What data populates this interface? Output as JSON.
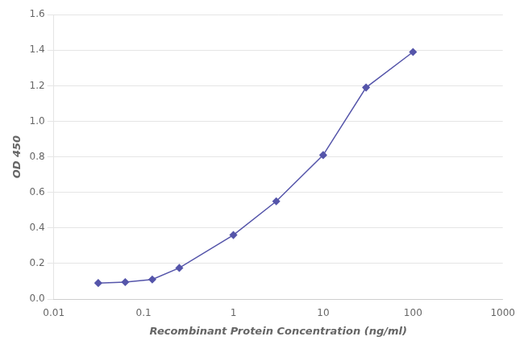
{
  "chart_data": {
    "type": "line",
    "x": [
      0.0313,
      0.0625,
      0.125,
      0.25,
      1.0,
      3.0,
      10.0,
      30.0,
      100.0
    ],
    "series": [
      {
        "values": [
          0.09,
          0.095,
          0.11,
          0.175,
          0.36,
          0.55,
          0.81,
          1.19,
          1.39
        ],
        "color": "#5555aa",
        "marker": "diamond",
        "line_style": "solid"
      }
    ],
    "xlabel": "Recombinant Protein Concentration (ng/ml)",
    "ylabel": "OD 450",
    "log": "x",
    "xlim": [
      0.01,
      1000
    ],
    "xticks": [
      0.01,
      0.1,
      1,
      10,
      100,
      1000
    ],
    "ylim": [
      0,
      1.6
    ],
    "yticks": [
      {
        "value": 0,
        "label": "0.0"
      },
      0.2,
      0.4,
      0.6,
      0.8,
      {
        "value": 1.0,
        "label": "1.0"
      },
      1.2,
      1.4,
      1.6
    ],
    "grid": "y"
  }
}
